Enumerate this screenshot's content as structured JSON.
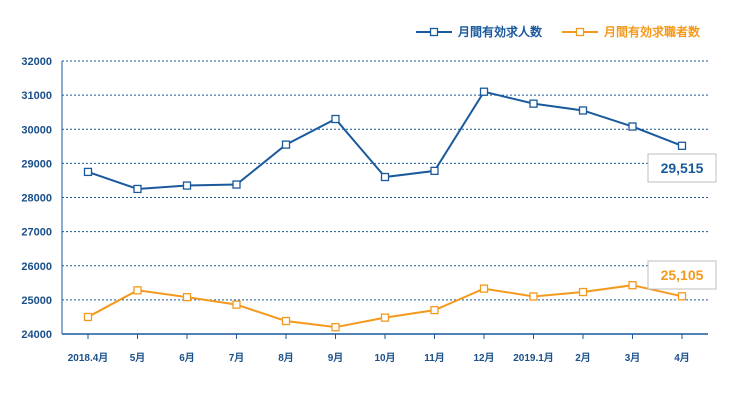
{
  "chart_data": {
    "type": "line",
    "title": "",
    "xlabel": "",
    "ylabel": "",
    "categories": [
      "2018.4月",
      "5月",
      "6月",
      "7月",
      "8月",
      "9月",
      "10月",
      "11月",
      "12月",
      "2019.1月",
      "2月",
      "3月",
      "4月"
    ],
    "ylim": [
      24000,
      32000
    ],
    "yticks": [
      24000,
      25000,
      26000,
      27000,
      28000,
      29000,
      30000,
      31000,
      32000
    ],
    "grid": true,
    "legend_position": "top-right",
    "series": [
      {
        "name": "月間有効求人数",
        "color": "#1a5a9c",
        "values": [
          28750,
          28250,
          28350,
          28380,
          29550,
          30300,
          28600,
          28780,
          31100,
          30750,
          30550,
          30080,
          29515
        ]
      },
      {
        "name": "月間有効求職者数",
        "color": "#f39a1e",
        "values": [
          24500,
          25280,
          25080,
          24860,
          24380,
          24200,
          24480,
          24700,
          25330,
          25100,
          25230,
          25430,
          25105
        ]
      }
    ],
    "annotations": [
      {
        "series": 0,
        "text": "29,515"
      },
      {
        "series": 1,
        "text": "25,105"
      }
    ]
  }
}
